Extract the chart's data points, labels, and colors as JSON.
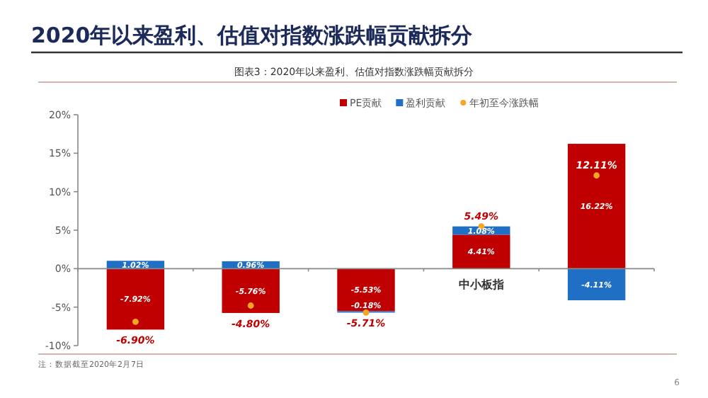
{
  "chart_data": {
    "type": "bar",
    "stacked": true,
    "title": "2020年以来盈利、估值对指数涨跌幅贡献拆分",
    "subtitle": "图表3：2020年以来盈利、估值对指数涨跌幅贡献拆分",
    "categories": [
      null,
      null,
      null,
      "中小板指",
      null
    ],
    "series": [
      {
        "name": "PE贡献",
        "color": "#c00000",
        "values": [
          -7.92,
          -5.76,
          -5.53,
          4.41,
          16.22
        ],
        "value_labels": [
          "-7.92%",
          "-5.76%",
          "-5.53%",
          "4.41%",
          "16.22%"
        ]
      },
      {
        "name": "盈利贡献",
        "color": "#1f6fc5",
        "values": [
          1.02,
          0.96,
          -0.18,
          1.08,
          -4.11
        ],
        "value_labels": [
          "1.02%",
          "0.96%",
          "-0.18%",
          "1.08%",
          "-4.11%"
        ]
      },
      {
        "name": "年初至今涨跌幅",
        "type": "scatter",
        "marker": "circle",
        "color": "#f5a623",
        "values": [
          -6.9,
          -4.8,
          -5.71,
          5.49,
          12.11
        ],
        "value_labels": [
          "-6.90%",
          "-4.80%",
          "-5.71%",
          "5.49%",
          "12.11%"
        ]
      }
    ],
    "ylim": [
      -10,
      20
    ],
    "yticks": [
      {
        "value": -10,
        "label": "-10%"
      },
      {
        "value": -5,
        "label": "-5%"
      },
      {
        "value": 0,
        "label": "0%"
      },
      {
        "value": 5,
        "label": "5%"
      },
      {
        "value": 10,
        "label": "10%"
      },
      {
        "value": 15,
        "label": "15%"
      },
      {
        "value": 20,
        "label": "20%"
      }
    ],
    "legend": "top",
    "annotations": [
      "注：数据截至2020年2月7日",
      "6"
    ]
  }
}
